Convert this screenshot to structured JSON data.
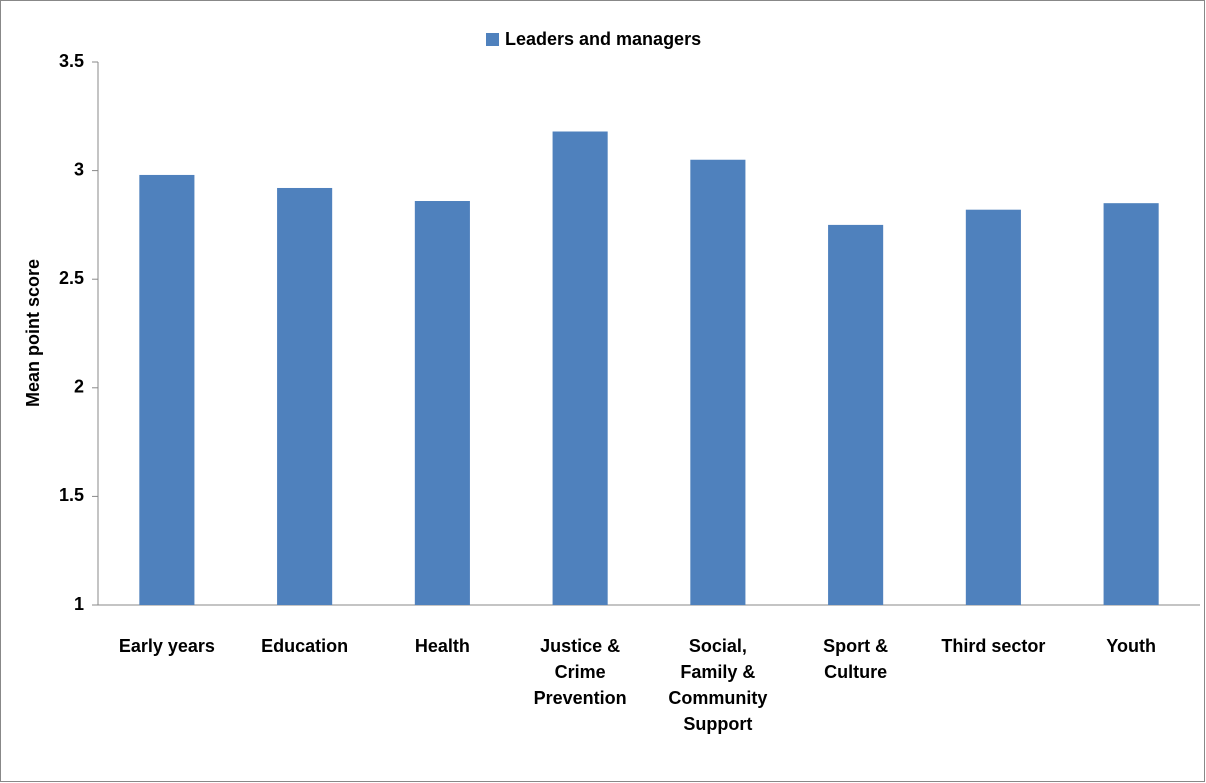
{
  "chart_data": {
    "type": "bar",
    "y_label": "Mean point score",
    "categories": [
      "Early years",
      "Education",
      "Health",
      "Justice & Crime Prevention",
      "Social, Family & Community Support",
      "Sport & Culture",
      "Third sector",
      "Youth"
    ],
    "series": [
      {
        "name": "Leaders and managers",
        "color": "#4f81bd",
        "values": [
          2.98,
          2.92,
          2.86,
          3.18,
          3.05,
          2.75,
          2.82,
          2.85
        ]
      }
    ],
    "ylim": [
      1,
      3.5
    ],
    "yticks": [
      1,
      1.5,
      2,
      2.5,
      3,
      3.5
    ],
    "grid": false,
    "legend": "top"
  }
}
